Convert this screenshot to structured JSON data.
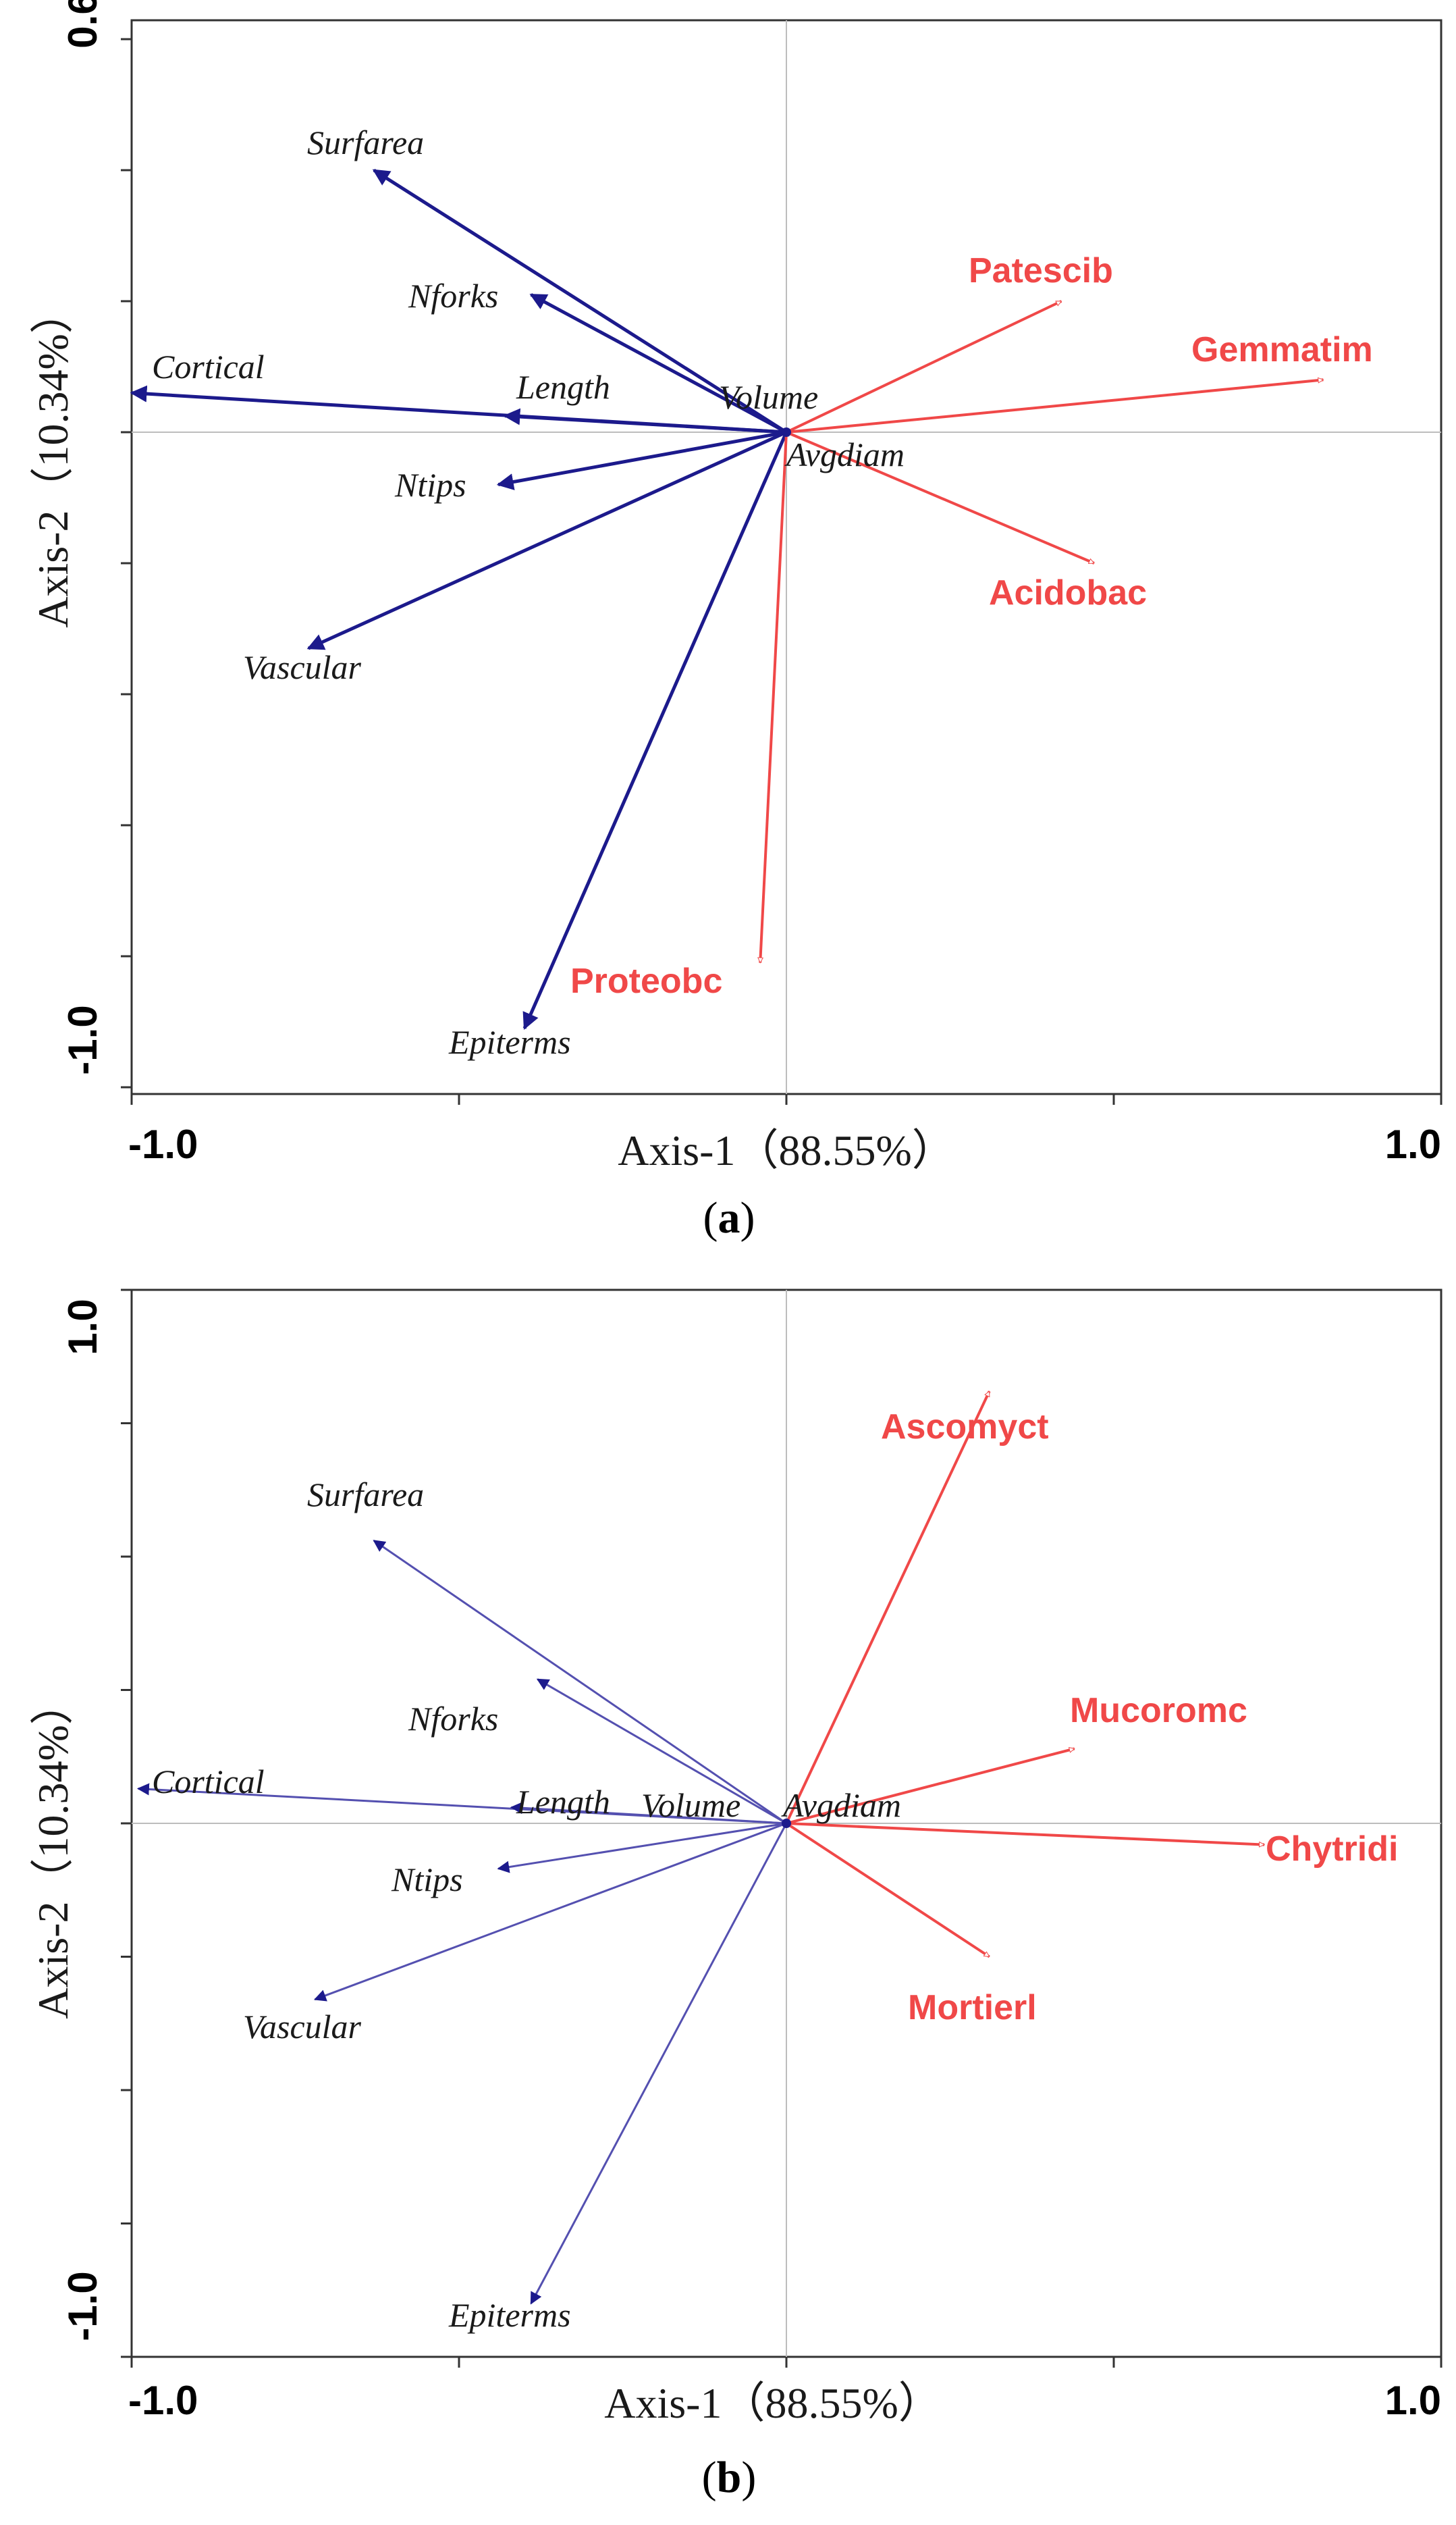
{
  "figure": {
    "axis_x_title": "Axis-1（88.55%）",
    "axis_y_title": "Axis-2（10.34%）",
    "colors": {
      "environment": "#1c1a8c",
      "environment_light": "#5450b0",
      "taxa": "#f04848",
      "frame": "#333333",
      "crosshair": "#bdbdbd"
    }
  },
  "chart_data": [
    {
      "type": "biplot",
      "panel_label": "(a)",
      "panel_letter": "a",
      "xlim": [
        -1.0,
        1.0
      ],
      "ylim": [
        -1.0,
        0.6
      ],
      "x_ticks": [
        -1.0,
        1.0
      ],
      "x_tick_labels": [
        "-1.0",
        "1.0"
      ],
      "y_ticks": [
        -1.0,
        0.6
      ],
      "y_tick_labels": [
        "-1.0",
        "0.6"
      ],
      "vectors": [
        {
          "name": "Surfarea",
          "group": "environment",
          "x": -0.63,
          "y": 0.4
        },
        {
          "name": "Nforks",
          "group": "environment",
          "x": -0.39,
          "y": 0.21
        },
        {
          "name": "Cortical",
          "group": "environment",
          "x": -1.0,
          "y": 0.06
        },
        {
          "name": "Length",
          "group": "environment",
          "x": -0.43,
          "y": 0.025
        },
        {
          "name": "Volume",
          "group": "environment",
          "x": -0.005,
          "y": 0.005
        },
        {
          "name": "Avgdiam",
          "group": "environment",
          "x": 0.005,
          "y": -0.005
        },
        {
          "name": "Ntips",
          "group": "environment",
          "x": -0.44,
          "y": -0.08
        },
        {
          "name": "Vascular",
          "group": "environment",
          "x": -0.73,
          "y": -0.33
        },
        {
          "name": "Epiterms",
          "group": "environment",
          "x": -0.4,
          "y": -0.91
        },
        {
          "name": "Patescib",
          "group": "taxa",
          "x": 0.42,
          "y": 0.2
        },
        {
          "name": "Gemmatim",
          "group": "taxa",
          "x": 0.82,
          "y": 0.08
        },
        {
          "name": "Acidobac",
          "group": "taxa",
          "x": 0.47,
          "y": -0.2
        },
        {
          "name": "Proteobc",
          "group": "taxa",
          "x": -0.04,
          "y": -0.81
        }
      ]
    },
    {
      "type": "biplot",
      "panel_label": "(b)",
      "panel_letter": "b",
      "xlim": [
        -1.0,
        1.0
      ],
      "ylim": [
        -1.0,
        1.0
      ],
      "x_ticks": [
        -1.0,
        1.0
      ],
      "x_tick_labels": [
        "-1.0",
        "1.0"
      ],
      "y_ticks": [
        -1.0,
        1.0
      ],
      "y_tick_labels": [
        "-1.0",
        "1.0"
      ],
      "vectors": [
        {
          "name": "Surfarea",
          "group": "environment",
          "x": -0.63,
          "y": 0.53
        },
        {
          "name": "Nforks",
          "group": "environment",
          "x": -0.38,
          "y": 0.27
        },
        {
          "name": "Cortical",
          "group": "environment",
          "x": -0.99,
          "y": 0.065
        },
        {
          "name": "Length",
          "group": "environment",
          "x": -0.42,
          "y": 0.03
        },
        {
          "name": "Volume",
          "group": "environment",
          "x": -0.005,
          "y": 0.005
        },
        {
          "name": "Avgdiam",
          "group": "environment",
          "x": 0.005,
          "y": 0.005
        },
        {
          "name": "Ntips",
          "group": "environment",
          "x": -0.44,
          "y": -0.085
        },
        {
          "name": "Vascular",
          "group": "environment",
          "x": -0.72,
          "y": -0.33
        },
        {
          "name": "Epiterms",
          "group": "environment",
          "x": -0.39,
          "y": -0.9
        },
        {
          "name": "Ascomyct",
          "group": "taxa",
          "x": 0.31,
          "y": 0.81
        },
        {
          "name": "Mucoromc",
          "group": "taxa",
          "x": 0.44,
          "y": 0.14
        },
        {
          "name": "Chytridi",
          "group": "taxa",
          "x": 0.73,
          "y": -0.04
        },
        {
          "name": "Mortierl",
          "group": "taxa",
          "x": 0.31,
          "y": -0.25
        }
      ]
    }
  ]
}
